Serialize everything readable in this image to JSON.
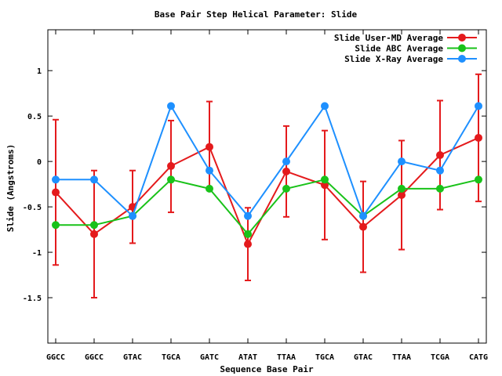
{
  "chart_data": {
    "type": "line",
    "title": "Base Pair Step Helical Parameter: Slide",
    "xlabel": "Sequence Base Pair",
    "ylabel": "Slide (Angstroms)",
    "categories": [
      "GGCC",
      "GGCC",
      "GTAC",
      "TGCA",
      "GATC",
      "ATAT",
      "TTAA",
      "TGCA",
      "GTAC",
      "TTAA",
      "TCGA",
      "CATG"
    ],
    "ylim": [
      -2.0,
      1.45
    ],
    "yticks": [
      1,
      0.5,
      0,
      -0.5,
      -1,
      -1.5
    ],
    "ytick_labels": [
      "1",
      "0.5",
      "0",
      "-0.5",
      "-1",
      "-1.5"
    ],
    "grid": false,
    "legend_position": "top-right",
    "series": [
      {
        "name": "Slide User-MD Average",
        "color": "#e41a1c",
        "values": [
          -0.34,
          -0.8,
          -0.5,
          -0.05,
          0.16,
          -0.91,
          -0.11,
          -0.26,
          -0.72,
          -0.37,
          0.07,
          0.26
        ],
        "error_low": [
          -1.14,
          -1.5,
          -0.9,
          -0.56,
          -0.3,
          -1.31,
          -0.61,
          -0.86,
          -1.22,
          -0.97,
          -0.53,
          -0.44
        ],
        "error_high": [
          0.46,
          -0.1,
          -0.1,
          0.45,
          0.66,
          -0.51,
          0.39,
          0.34,
          -0.22,
          0.23,
          0.67,
          0.96
        ]
      },
      {
        "name": "Slide ABC Average",
        "color": "#19c219",
        "values": [
          -0.7,
          -0.7,
          -0.6,
          -0.2,
          -0.3,
          -0.8,
          -0.3,
          -0.2,
          -0.6,
          -0.3,
          -0.3,
          -0.2
        ]
      },
      {
        "name": "Slide X-Ray Average",
        "color": "#1e90ff",
        "values": [
          -0.2,
          -0.2,
          -0.6,
          0.61,
          -0.1,
          -0.6,
          0.0,
          0.61,
          -0.6,
          0.0,
          -0.1,
          0.61
        ]
      }
    ]
  }
}
